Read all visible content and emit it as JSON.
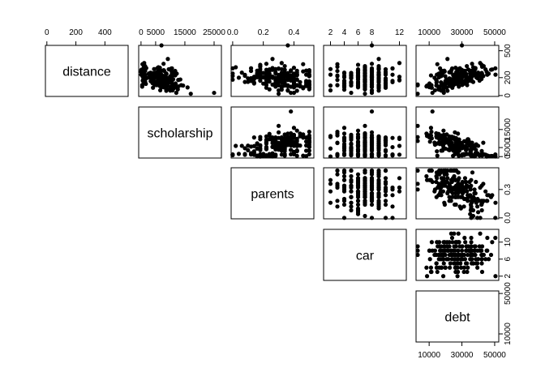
{
  "chart_data": {
    "type": "scatter",
    "variables": [
      "distance",
      "scholarship",
      "parents",
      "car",
      "debt"
    ],
    "axes": {
      "distance": {
        "ticks": [
          0,
          200,
          400
        ],
        "tick_labels": [
          "0",
          "200",
          "400"
        ],
        "range": [
          -10,
          560
        ]
      },
      "scholarship": {
        "ticks": [
          0,
          5000,
          15000,
          25000
        ],
        "tick_labels": [
          "0",
          "5000",
          "15000",
          "25000"
        ],
        "range": [
          -800,
          27500
        ]
      },
      "parents": {
        "ticks": [
          0.0,
          0.2,
          0.4
        ],
        "tick_labels": [
          "0.0",
          "0.2",
          "0.4"
        ],
        "range": [
          -0.01,
          0.53
        ]
      },
      "car": {
        "ticks": [
          2,
          4,
          6,
          8,
          12
        ],
        "tick_labels": [
          "2",
          "4",
          "6",
          "8",
          "12"
        ],
        "range": [
          1,
          13
        ]
      },
      "debt": {
        "ticks": [
          10000,
          30000,
          50000
        ],
        "tick_labels": [
          "10000",
          "30000",
          "50000"
        ],
        "range": [
          2000,
          52500
        ]
      }
    },
    "side_ticks": {
      "distance": {
        "ticks": [
          0,
          200,
          500
        ],
        "tick_labels": [
          "0",
          "200",
          "500"
        ]
      },
      "scholarship": {
        "ticks": [
          0,
          5000,
          15000
        ],
        "tick_labels": [
          "0",
          "5000",
          "15000"
        ]
      },
      "parents": {
        "ticks": [
          0.0,
          0.3
        ],
        "tick_labels": [
          "0.0",
          "0.3"
        ]
      },
      "car": {
        "ticks": [
          2,
          6,
          10
        ],
        "tick_labels": [
          "2",
          "6",
          "10"
        ]
      },
      "debt": {
        "ticks": [
          10000,
          50000
        ],
        "tick_labels": [
          "10000",
          "50000"
        ]
      }
    },
    "n_points": 200,
    "marker": "filled-circle",
    "color": "#000000",
    "layout": "upper-triangle pairs plot",
    "grid": false,
    "legend": "none"
  }
}
